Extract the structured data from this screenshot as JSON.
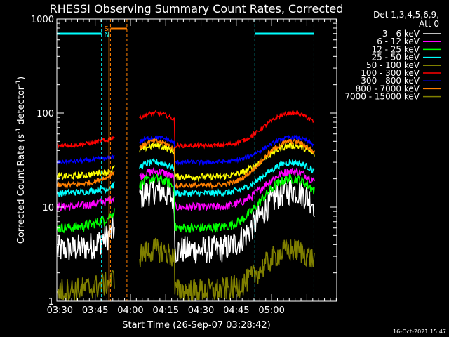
{
  "chart_data": {
    "type": "line",
    "title": "RHESSI Observing Summary Count Rates, Corrected",
    "xlabel": "Start Time (26-Sep-07 03:28:42)",
    "ylabel": "Corrected Count Rate (s⁻¹ detector⁻¹)",
    "ylabel_parts": [
      "Corrected Count Rate (s",
      "-1",
      " detector",
      "-1",
      ")"
    ],
    "yscale": "log",
    "ylim": [
      1,
      1000
    ],
    "xlim_minutes": [
      0,
      119
    ],
    "x_start_offset_minutes": 1.3,
    "x_ticks": [
      {
        "label": "03:30",
        "minute": 1.3
      },
      {
        "label": "03:45",
        "minute": 16.3
      },
      {
        "label": "04:00",
        "minute": 31.3
      },
      {
        "label": "04:15",
        "minute": 46.3
      },
      {
        "label": "04:30",
        "minute": 61.3
      },
      {
        "label": "04:45",
        "minute": 76.3
      },
      {
        "label": "05:00",
        "minute": 91.3
      }
    ],
    "y_ticks": [
      {
        "label": "1",
        "value": 1
      },
      {
        "label": "10",
        "value": 10
      },
      {
        "label": "100",
        "value": 100
      },
      {
        "label": "1000",
        "value": 1000
      }
    ],
    "legend": {
      "header": [
        "Det 1,3,4,5,6,9,",
        "Att 0"
      ],
      "placement": "right"
    },
    "gap_minutes": [
      24.5,
      35.2
    ],
    "saa_markers": [
      {
        "minute": 19.2,
        "label": "S",
        "color": "#ff7f00"
      },
      {
        "minute": 19.2,
        "label": "N",
        "color": "#00ffff"
      }
    ],
    "night_bars": [
      {
        "from": 0,
        "to": 19.0,
        "color": "#00ffff"
      },
      {
        "from": 84.2,
        "to": 109.3,
        "color": "#00ffff"
      }
    ],
    "saa_bars": [
      {
        "from": 22.8,
        "to": 29.8,
        "color": "#ff7f00"
      }
    ],
    "cyan_vlines": [
      0,
      19.0,
      84.2,
      109.3
    ],
    "orange_vlines": [
      22.8,
      29.8
    ],
    "series": [
      {
        "name": "3 - 6 keV",
        "color": "#ffffff",
        "base": 3.5,
        "peak1": 15,
        "peak2": 15,
        "noise": 0.35
      },
      {
        "name": "6 - 12 keV",
        "color": "#ff00ff",
        "base": 10,
        "peak1": 24,
        "peak2": 24,
        "noise": 0.1
      },
      {
        "name": "12 - 25 keV",
        "color": "#00ff00",
        "base": 6,
        "peak1": 20,
        "peak2": 20,
        "noise": 0.12
      },
      {
        "name": "25 - 50 keV",
        "color": "#00ffff",
        "base": 14,
        "peak1": 30,
        "peak2": 30,
        "noise": 0.08
      },
      {
        "name": "50 - 100 keV",
        "color": "#ffff00",
        "base": 21,
        "peak1": 45,
        "peak2": 45,
        "noise": 0.08
      },
      {
        "name": "100 - 300 keV",
        "color": "#ff0000",
        "base": 45,
        "peak1": 100,
        "peak2": 100,
        "noise": 0.05
      },
      {
        "name": "300 - 800 keV",
        "color": "#0000ff",
        "base": 30,
        "peak1": 55,
        "peak2": 55,
        "noise": 0.05
      },
      {
        "name": "800 - 7000 keV",
        "color": "#ff7f00",
        "base": 17,
        "peak1": 50,
        "peak2": 50,
        "noise": 0.06
      },
      {
        "name": "7000 - 15000 keV",
        "color": "#808000",
        "base": 1.3,
        "peak1": 3.5,
        "peak2": 3.5,
        "noise": 0.3
      }
    ]
  },
  "footer": {
    "date": "16-Oct-2021 15:47"
  }
}
